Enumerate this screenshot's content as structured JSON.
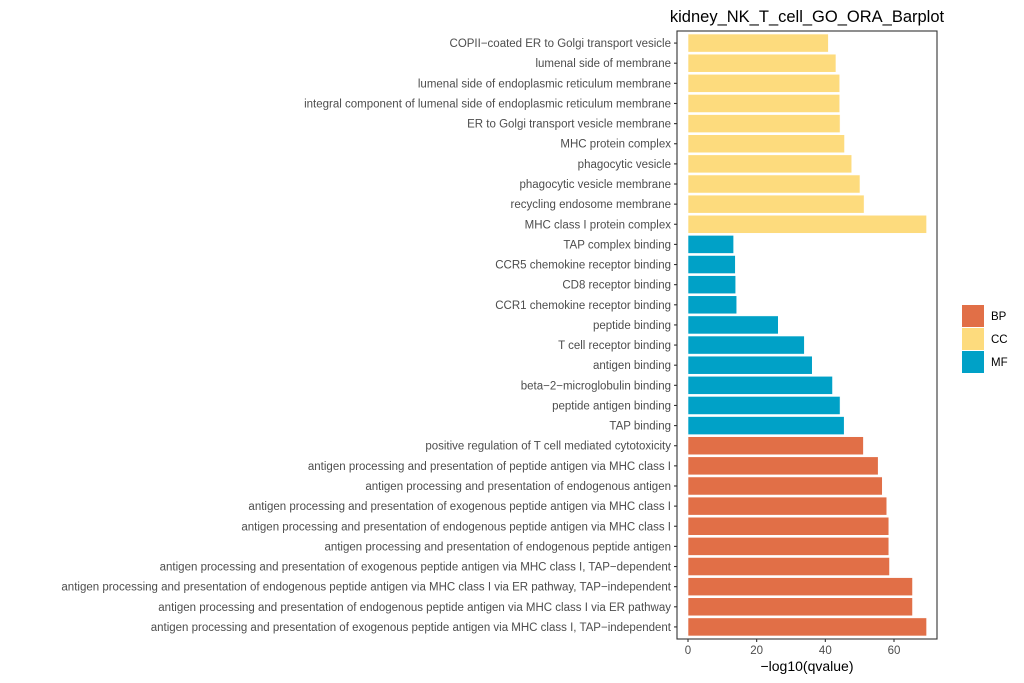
{
  "chart_data": {
    "type": "bar",
    "orientation": "horizontal",
    "title": "kidney_NK_T_cell_GO_ORA_Barplot",
    "xlabel": "−log10(qvalue)",
    "ylabel": "",
    "xlim": [
      -3,
      72
    ],
    "xticks": [
      0,
      20,
      40,
      60
    ],
    "xtick_labels": [
      "0",
      "20",
      "40",
      "60"
    ],
    "grid": false,
    "legend": {
      "position": "right",
      "entries": [
        {
          "name": "BP",
          "color": "#E16F47"
        },
        {
          "name": "CC",
          "color": "#FDDB7D"
        },
        {
          "name": "MF",
          "color": "#00A1C7"
        }
      ]
    },
    "bars": [
      {
        "label": "COPII−coated ER to Golgi transport vesicle",
        "value": 40.9,
        "group": "CC"
      },
      {
        "label": "lumenal side of membrane",
        "value": 43.1,
        "group": "CC"
      },
      {
        "label": "lumenal side of endoplasmic reticulum membrane",
        "value": 44.2,
        "group": "CC"
      },
      {
        "label": "integral component of lumenal side of endoplasmic reticulum membrane",
        "value": 44.2,
        "group": "CC"
      },
      {
        "label": "ER to Golgi transport vesicle membrane",
        "value": 44.3,
        "group": "CC"
      },
      {
        "label": "MHC protein complex",
        "value": 45.6,
        "group": "CC"
      },
      {
        "label": "phagocytic vesicle",
        "value": 47.7,
        "group": "CC"
      },
      {
        "label": "phagocytic vesicle membrane",
        "value": 50.1,
        "group": "CC"
      },
      {
        "label": "recycling endosome membrane",
        "value": 51.3,
        "group": "CC"
      },
      {
        "label": "MHC class I protein complex",
        "value": 69.5,
        "group": "CC"
      },
      {
        "label": "TAP complex binding",
        "value": 13.3,
        "group": "MF"
      },
      {
        "label": "CCR5 chemokine receptor binding",
        "value": 13.8,
        "group": "MF"
      },
      {
        "label": "CD8 receptor binding",
        "value": 13.9,
        "group": "MF"
      },
      {
        "label": "CCR1 chemokine receptor binding",
        "value": 14.2,
        "group": "MF"
      },
      {
        "label": "peptide binding",
        "value": 26.3,
        "group": "MF"
      },
      {
        "label": "T cell receptor binding",
        "value": 33.9,
        "group": "MF"
      },
      {
        "label": "antigen binding",
        "value": 36.2,
        "group": "MF"
      },
      {
        "label": "beta−2−microglobulin binding",
        "value": 42.1,
        "group": "MF"
      },
      {
        "label": "peptide antigen binding",
        "value": 44.3,
        "group": "MF"
      },
      {
        "label": "TAP binding",
        "value": 45.5,
        "group": "MF"
      },
      {
        "label": "positive regulation of T cell mediated cytotoxicity",
        "value": 51.1,
        "group": "BP"
      },
      {
        "label": "antigen processing and presentation of peptide antigen via MHC class I",
        "value": 55.4,
        "group": "BP"
      },
      {
        "label": "antigen processing and presentation of endogenous antigen",
        "value": 56.6,
        "group": "BP"
      },
      {
        "label": "antigen processing and presentation of exogenous peptide antigen via MHC class I",
        "value": 57.9,
        "group": "BP"
      },
      {
        "label": "antigen processing and presentation of endogenous peptide antigen via MHC class I",
        "value": 58.5,
        "group": "BP"
      },
      {
        "label": "antigen processing and presentation of endogenous peptide antigen",
        "value": 58.5,
        "group": "BP"
      },
      {
        "label": "antigen processing and presentation of exogenous peptide antigen via MHC class I, TAP−dependent",
        "value": 58.7,
        "group": "BP"
      },
      {
        "label": "antigen processing and presentation of endogenous peptide antigen via MHC class I via ER pathway, TAP−independent",
        "value": 65.4,
        "group": "BP"
      },
      {
        "label": "antigen processing and presentation of endogenous peptide antigen via MHC class I via ER pathway",
        "value": 65.4,
        "group": "BP"
      },
      {
        "label": "antigen processing and presentation of exogenous peptide antigen via MHC class I, TAP−independent",
        "value": 69.5,
        "group": "BP"
      }
    ]
  }
}
